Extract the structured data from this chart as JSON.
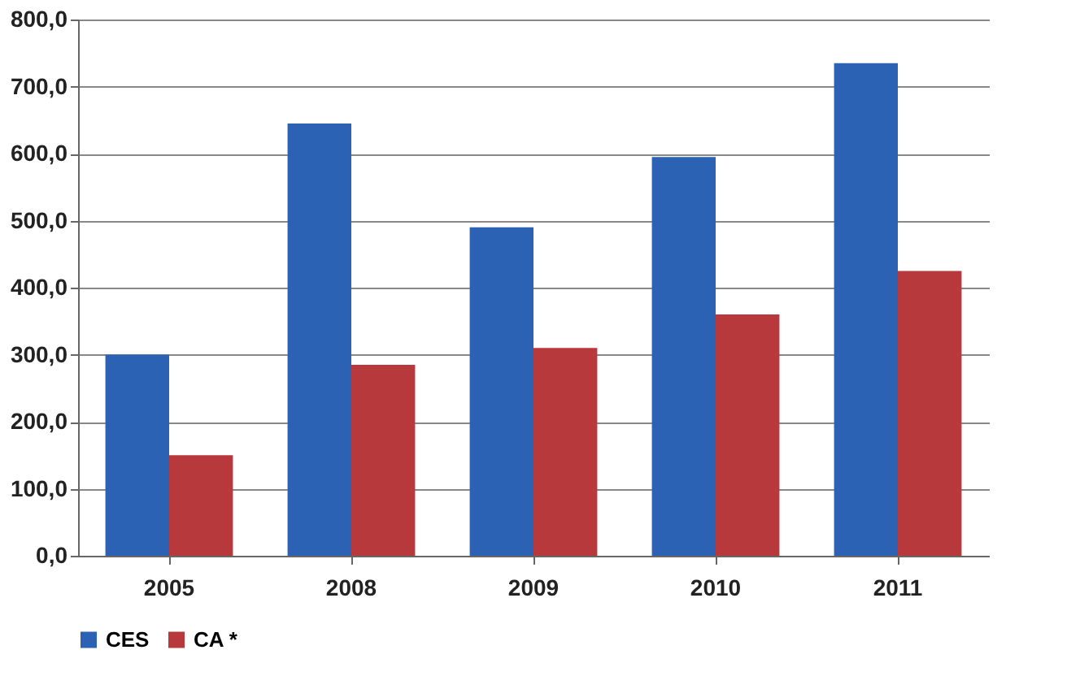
{
  "chart_data": {
    "type": "bar",
    "categories": [
      "2005",
      "2008",
      "2009",
      "2010",
      "2011"
    ],
    "series": [
      {
        "name": "CES",
        "color": "#2b62b3",
        "values": [
          300,
          645,
          490,
          595,
          735
        ]
      },
      {
        "name": "CA *",
        "color": "#b8393b",
        "values": [
          150,
          285,
          310,
          360,
          425
        ]
      }
    ],
    "ylim": [
      0,
      800
    ],
    "yticks": [
      {
        "value": 0,
        "label": "0,0"
      },
      {
        "value": 100,
        "label": "100,0"
      },
      {
        "value": 200,
        "label": "200,0"
      },
      {
        "value": 300,
        "label": "300,0"
      },
      {
        "value": 400,
        "label": "400,0"
      },
      {
        "value": 500,
        "label": "500,0"
      },
      {
        "value": 600,
        "label": "600,0"
      },
      {
        "value": 700,
        "label": "700,0"
      },
      {
        "value": 800,
        "label": "800,0"
      }
    ],
    "grid": "y",
    "legend": "bottom"
  }
}
